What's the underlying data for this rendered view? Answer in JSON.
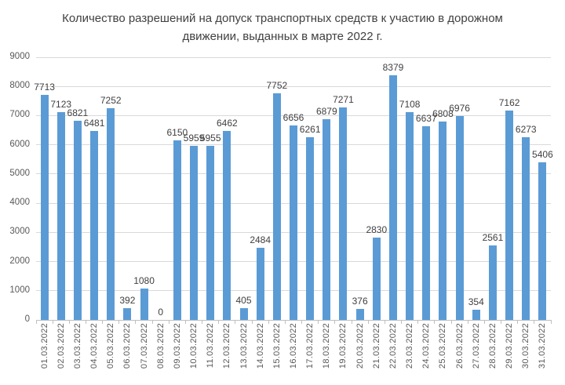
{
  "chart_data": {
    "type": "bar",
    "title": "Количество разрешений на допуск транспортных средств к участию в дорожном движении, выданных в марте 2022 г.",
    "categories": [
      "01.03.2022",
      "02.03.2022",
      "03.03.2022",
      "04.03.2022",
      "05.03.2022",
      "06.03.2022",
      "07.03.2022",
      "08.03.2022",
      "09.03.2022",
      "10.03.2022",
      "11.03.2022",
      "12.03.2022",
      "13.03.2022",
      "14.03.2022",
      "15.03.2022",
      "16.03.2022",
      "17.03.2022",
      "18.03.2022",
      "19.03.2022",
      "20.03.2022",
      "21.03.2022",
      "22.03.2022",
      "23.03.2022",
      "24.03.2022",
      "25.03.2022",
      "26.03.2022",
      "27.03.2022",
      "28.03.2022",
      "29.03.2022",
      "30.03.2022",
      "31.03.2022"
    ],
    "values": [
      7713,
      7123,
      6821,
      6481,
      7252,
      392,
      1080,
      0,
      6150,
      5959,
      5955,
      6462,
      405,
      2484,
      7752,
      6656,
      6261,
      6879,
      7271,
      376,
      2830,
      8379,
      7108,
      6637,
      6808,
      6976,
      354,
      2561,
      7162,
      6273,
      5406
    ],
    "xlabel": "",
    "ylabel": "",
    "ylim": [
      0,
      9000
    ],
    "ytick_step": 1000,
    "yticks": [
      0,
      1000,
      2000,
      3000,
      4000,
      5000,
      6000,
      7000,
      8000,
      9000
    ],
    "grid": true,
    "legend": "none",
    "data_labels": true
  },
  "colors": {
    "bar": "#5B9BD5",
    "gridline": "#d9d9d9",
    "axis_line": "#bfbfbf",
    "title_text": "#404040",
    "tick_text": "#595959",
    "value_label_text": "#404040",
    "background": "#ffffff"
  }
}
